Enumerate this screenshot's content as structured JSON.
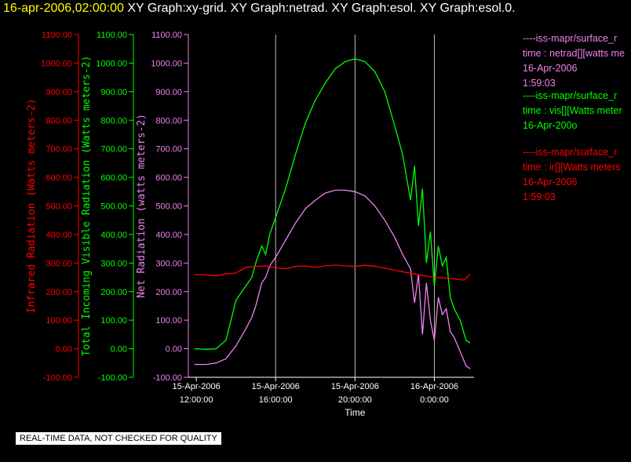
{
  "header": {
    "timestamp": "16-apr-2006,02:00:00",
    "graphs": "XY Graph:xy-grid.  XY Graph:netrad.  XY Graph:esol.  XY Graph:esol.0."
  },
  "legend": [
    {
      "line1": "----iss-mapr/surface_r",
      "line2": "time : netrad[][watts me",
      "line3": "16-Apr-2006",
      "line4": "1:59:03",
      "color": "#ee82ee"
    },
    {
      "line1": "----iss-mapr/surface_r",
      "line2": "time : vis[][Watts meter",
      "line3": "16-Apr-200o",
      "line4": "",
      "color": "#00ff00"
    },
    {
      "line1": "----iss-mapr/surface_r",
      "line2": "time : ir[][Watts meters",
      "line3": "16-Apr-2006",
      "line4": "1:59:03",
      "color": "#ff0000"
    }
  ],
  "footer": {
    "note": "REAL-TIME DATA, NOT CHECKED FOR QUALITY"
  },
  "colors": {
    "ir": "#ff0000",
    "vis": "#00ff00",
    "netrad": "#ee82ee",
    "axis": "#ffffff"
  },
  "chart_data": {
    "type": "line",
    "xlabel": "Time",
    "x_ticks": [
      {
        "date": "15-Apr-2006",
        "time": "12:00:00",
        "hours": 12
      },
      {
        "date": "15-Apr-2006",
        "time": "16:00:00",
        "hours": 16
      },
      {
        "date": "15-Apr-2006",
        "time": "20:00:00",
        "hours": 20
      },
      {
        "date": "16-Apr-2006",
        "time": "0:00:00",
        "hours": 24
      }
    ],
    "xlim_hours": [
      11.6,
      26.0
    ],
    "ylim": [
      -100,
      1100
    ],
    "y_ticks": [
      "-100.00",
      "0.00",
      "100.00",
      "200.00",
      "300.00",
      "400.00",
      "500.00",
      "600.00",
      "700.00",
      "800.00",
      "900.00",
      "1000.00",
      "1100.00"
    ],
    "vertical_gridlines_hours": [
      16,
      20,
      24
    ],
    "axes": [
      {
        "label": "Infrared Radiation (Watts meters-2)",
        "color": "#ff0000"
      },
      {
        "label": "Total Incoming Visible Radiation (Watts meters-2)",
        "color": "#00ff00"
      },
      {
        "label": "Net Radiation (watts meters-2)",
        "color": "#ee82ee"
      }
    ],
    "series": [
      {
        "name": "vis",
        "color": "#00ff00",
        "x": [
          11.9,
          12.5,
          13.0,
          13.5,
          14.0,
          14.5,
          14.8,
          15.0,
          15.3,
          15.5,
          15.7,
          16.0,
          16.5,
          17.0,
          17.5,
          18.0,
          18.5,
          19.0,
          19.5,
          20.0,
          20.5,
          21.0,
          21.5,
          22.0,
          22.4,
          22.8,
          23.0,
          23.2,
          23.4,
          23.6,
          23.8,
          24.0,
          24.2,
          24.4,
          24.6,
          24.8,
          25.0,
          25.3,
          25.6,
          25.8
        ],
        "y": [
          0,
          -2,
          0,
          30,
          170,
          220,
          250,
          300,
          360,
          330,
          400,
          460,
          560,
          680,
          790,
          870,
          930,
          980,
          1005,
          1015,
          1005,
          970,
          900,
          780,
          680,
          520,
          640,
          430,
          560,
          300,
          410,
          220,
          360,
          290,
          320,
          180,
          140,
          100,
          30,
          20
        ]
      },
      {
        "name": "netrad",
        "color": "#ee82ee",
        "x": [
          11.9,
          12.5,
          13.0,
          13.5,
          14.0,
          14.5,
          14.8,
          15.0,
          15.3,
          15.5,
          15.7,
          16.0,
          16.5,
          17.0,
          17.5,
          18.0,
          18.5,
          19.0,
          19.5,
          20.0,
          20.5,
          21.0,
          21.5,
          22.0,
          22.4,
          22.8,
          23.0,
          23.2,
          23.4,
          23.6,
          23.8,
          24.0,
          24.2,
          24.4,
          24.6,
          24.8,
          25.0,
          25.3,
          25.6,
          25.8
        ],
        "y": [
          -55,
          -55,
          -50,
          -35,
          10,
          70,
          110,
          150,
          230,
          250,
          290,
          320,
          380,
          440,
          490,
          520,
          545,
          555,
          555,
          550,
          535,
          500,
          450,
          390,
          330,
          280,
          160,
          260,
          50,
          230,
          100,
          30,
          180,
          120,
          140,
          60,
          40,
          -10,
          -60,
          -70
        ]
      },
      {
        "name": "ir",
        "color": "#ff0000",
        "x": [
          11.9,
          12.5,
          13.0,
          13.5,
          14.0,
          14.5,
          15.0,
          15.5,
          16.0,
          16.5,
          17.0,
          17.5,
          18.0,
          18.5,
          19.0,
          19.5,
          20.0,
          20.5,
          21.0,
          21.5,
          22.0,
          22.5,
          23.0,
          23.5,
          24.0,
          24.5,
          25.0,
          25.5,
          25.8
        ],
        "y": [
          260,
          258,
          255,
          262,
          265,
          285,
          288,
          290,
          283,
          280,
          288,
          290,
          285,
          290,
          293,
          290,
          288,
          292,
          289,
          282,
          275,
          268,
          262,
          255,
          250,
          248,
          245,
          240,
          260
        ]
      }
    ]
  }
}
